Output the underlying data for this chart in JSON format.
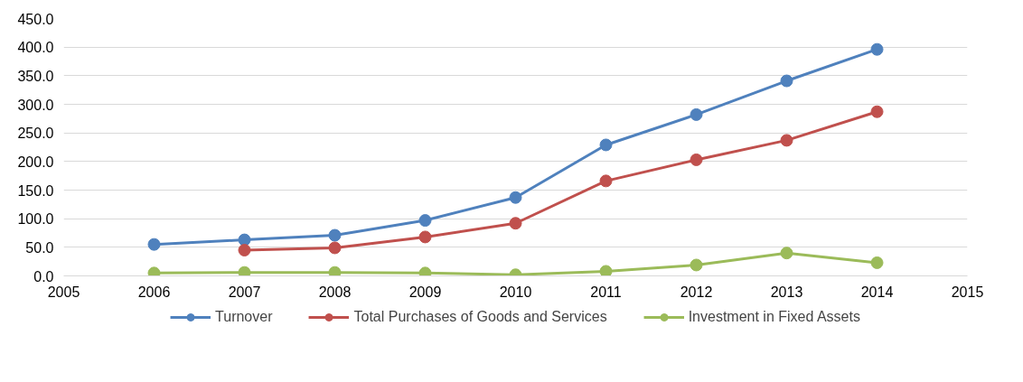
{
  "chart_data": {
    "type": "line",
    "x": [
      2006,
      2007,
      2008,
      2009,
      2010,
      2011,
      2012,
      2013,
      2014
    ],
    "series": [
      {
        "name": "Turnover",
        "color": "#4f81bd",
        "values": [
          55,
          63,
          71,
          97,
          137,
          229,
          282,
          341,
          396
        ]
      },
      {
        "name": "Total Purchases of Goods and Services",
        "color": "#c0504d",
        "values": [
          null,
          45,
          49,
          68,
          92,
          166,
          203,
          237,
          287
        ]
      },
      {
        "name": "Investment in Fixed Assets",
        "color": "#9bbb59",
        "values": [
          5,
          6,
          6,
          5,
          2,
          8,
          19,
          40,
          23
        ]
      }
    ],
    "xlim": [
      2005,
      2015
    ],
    "xticks": [
      2005,
      2006,
      2007,
      2008,
      2009,
      2010,
      2011,
      2012,
      2013,
      2014,
      2015
    ],
    "ylim": [
      0,
      450
    ],
    "yticks": [
      {
        "value": 0,
        "label": "0.0"
      },
      {
        "value": 50,
        "label": "50.0"
      },
      {
        "value": 100,
        "label": "100.0"
      },
      {
        "value": 150,
        "label": "150.0"
      },
      {
        "value": 200,
        "label": "200.0"
      },
      {
        "value": 250,
        "label": "250.0"
      },
      {
        "value": 300,
        "label": "300.0"
      },
      {
        "value": 350,
        "label": "350.0"
      },
      {
        "value": 400,
        "label": "400.0"
      },
      {
        "value": 450,
        "label": "450.0"
      }
    ],
    "grid": "y",
    "legend": "bottom",
    "marker": "circle",
    "line_style": "solid"
  }
}
